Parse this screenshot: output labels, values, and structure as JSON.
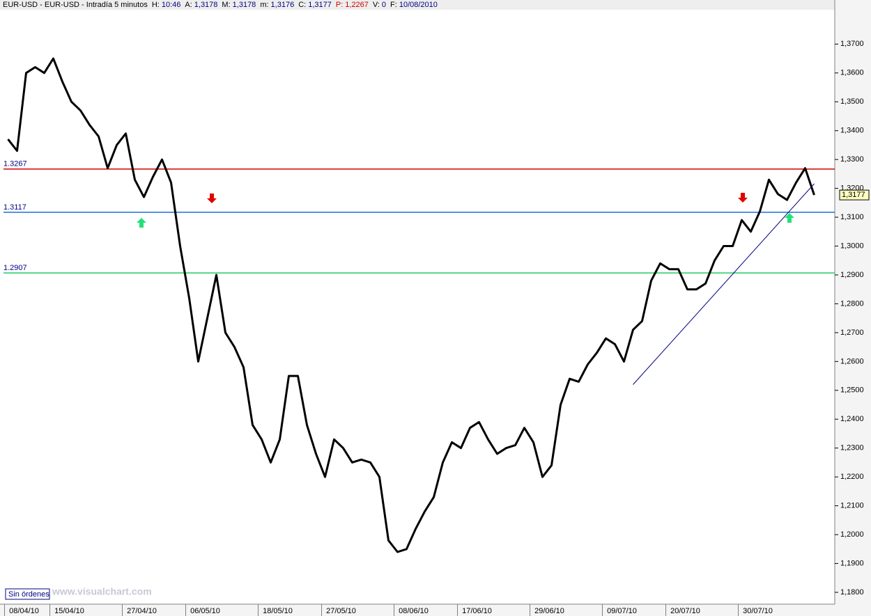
{
  "header": {
    "symbol": "EUR-USD - EUR-USD - Intradía 5 minutos",
    "fields": [
      {
        "key": "H:",
        "value": "10:46",
        "color": "#000080"
      },
      {
        "key": "A:",
        "value": "1,3178",
        "color": "#000080"
      },
      {
        "key": "M:",
        "value": "1,3178",
        "color": "#000080"
      },
      {
        "key": "m:",
        "value": "1,3176",
        "color": "#000080"
      },
      {
        "key": "C:",
        "value": "1,3177",
        "color": "#000080"
      },
      {
        "key": "P:",
        "value": "1,2267",
        "color": "#d00000"
      },
      {
        "key": "V:",
        "value": "0",
        "color": "#000080"
      },
      {
        "key": "F:",
        "value": "10/08/2010",
        "color": "#000080"
      }
    ]
  },
  "status": "Sin órdenes",
  "watermark": "www.visualchart.com",
  "chart_data": {
    "type": "line",
    "x": [
      "07/04/10",
      "08/04/10",
      "09/04/10",
      "12/04/10",
      "13/04/10",
      "14/04/10",
      "15/04/10",
      "16/04/10",
      "19/04/10",
      "20/04/10",
      "21/04/10",
      "22/04/10",
      "23/04/10",
      "26/04/10",
      "27/04/10",
      "28/04/10",
      "29/04/10",
      "30/04/10",
      "03/05/10",
      "04/05/10",
      "05/05/10",
      "06/05/10",
      "07/05/10",
      "10/05/10",
      "11/05/10",
      "12/05/10",
      "13/05/10",
      "14/05/10",
      "17/05/10",
      "18/05/10",
      "19/05/10",
      "20/05/10",
      "21/05/10",
      "24/05/10",
      "25/05/10",
      "26/05/10",
      "27/05/10",
      "28/05/10",
      "31/05/10",
      "01/06/10",
      "02/06/10",
      "03/06/10",
      "04/06/10",
      "07/06/10",
      "08/06/10",
      "09/06/10",
      "10/06/10",
      "11/06/10",
      "14/06/10",
      "15/06/10",
      "16/06/10",
      "17/06/10",
      "18/06/10",
      "21/06/10",
      "22/06/10",
      "23/06/10",
      "24/06/10",
      "25/06/10",
      "28/06/10",
      "29/06/10",
      "30/06/10",
      "01/07/10",
      "02/07/10",
      "05/07/10",
      "06/07/10",
      "07/07/10",
      "08/07/10",
      "09/07/10",
      "12/07/10",
      "13/07/10",
      "14/07/10",
      "15/07/10",
      "16/07/10",
      "19/07/10",
      "20/07/10",
      "21/07/10",
      "22/07/10",
      "23/07/10",
      "26/07/10",
      "27/07/10",
      "28/07/10",
      "29/07/10",
      "30/07/10",
      "02/08/10",
      "03/08/10",
      "04/08/10",
      "05/08/10",
      "06/08/10",
      "09/08/10",
      "10/08/10"
    ],
    "series": [
      {
        "name": "EUR-USD",
        "color": "#000000",
        "values": [
          1.337,
          1.333,
          1.36,
          1.362,
          1.36,
          1.365,
          1.357,
          1.35,
          1.347,
          1.342,
          1.338,
          1.327,
          1.335,
          1.339,
          1.323,
          1.317,
          1.324,
          1.33,
          1.322,
          1.3,
          1.282,
          1.26,
          1.275,
          1.29,
          1.27,
          1.265,
          1.258,
          1.238,
          1.233,
          1.225,
          1.233,
          1.255,
          1.255,
          1.238,
          1.228,
          1.22,
          1.233,
          1.23,
          1.225,
          1.226,
          1.225,
          1.22,
          1.198,
          1.194,
          1.195,
          1.202,
          1.208,
          1.213,
          1.225,
          1.232,
          1.23,
          1.237,
          1.239,
          1.233,
          1.228,
          1.23,
          1.231,
          1.237,
          1.232,
          1.22,
          1.224,
          1.245,
          1.254,
          1.253,
          1.259,
          1.263,
          1.268,
          1.266,
          1.26,
          1.271,
          1.274,
          1.288,
          1.294,
          1.292,
          1.292,
          1.285,
          1.285,
          1.287,
          1.295,
          1.3,
          1.3,
          1.309,
          1.305,
          1.312,
          1.323,
          1.318,
          1.316,
          1.322,
          1.327,
          1.3177
        ]
      }
    ],
    "xticks": [
      "08/04/10",
      "15/04/10",
      "27/04/10",
      "06/05/10",
      "18/05/10",
      "27/05/10",
      "08/06/10",
      "17/06/10",
      "29/06/10",
      "09/07/10",
      "20/07/10",
      "30/07/10"
    ],
    "ylim": [
      1.1759,
      1.3819
    ],
    "yticks": [
      {
        "value": 1.18,
        "label": "1,1800"
      },
      {
        "value": 1.19,
        "label": "1,1900"
      },
      {
        "value": 1.2,
        "label": "1,2000"
      },
      {
        "value": 1.21,
        "label": "1,2100"
      },
      {
        "value": 1.22,
        "label": "1,2200"
      },
      {
        "value": 1.23,
        "label": "1,2300"
      },
      {
        "value": 1.24,
        "label": "1,2400"
      },
      {
        "value": 1.25,
        "label": "1,2500"
      },
      {
        "value": 1.26,
        "label": "1,2600"
      },
      {
        "value": 1.27,
        "label": "1,2700"
      },
      {
        "value": 1.28,
        "label": "1,2800"
      },
      {
        "value": 1.29,
        "label": "1,2900"
      },
      {
        "value": 1.3,
        "label": "1,3000"
      },
      {
        "value": 1.31,
        "label": "1,3100"
      },
      {
        "value": 1.32,
        "label": "1,3200"
      },
      {
        "value": 1.33,
        "label": "1,3300"
      },
      {
        "value": 1.34,
        "label": "1,3400"
      },
      {
        "value": 1.35,
        "label": "1,3500"
      },
      {
        "value": 1.36,
        "label": "1,3600"
      },
      {
        "value": 1.37,
        "label": "1,3700"
      }
    ],
    "levels": [
      {
        "value": 1.3267,
        "color": "#d00000"
      },
      {
        "value": 1.3117,
        "color": "#1e6fd9"
      },
      {
        "value": 1.2907,
        "color": "#22cc66"
      }
    ],
    "trendline": {
      "x": [
        "13/07/10",
        "10/08/10"
      ],
      "values": [
        1.252,
        1.3216
      ],
      "color": "#000080"
    },
    "price_marker": {
      "value": 1.3177,
      "label": "1,3177"
    },
    "grid": false
  }
}
